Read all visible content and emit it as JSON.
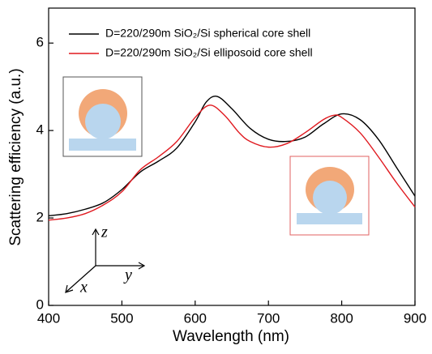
{
  "chart_data": {
    "type": "line",
    "xlabel": "Wavelength (nm)",
    "ylabel": "Scattering efficiency (a.u.)",
    "xlim": [
      400,
      900
    ],
    "xticks": [
      400,
      500,
      600,
      700,
      800,
      900
    ],
    "ylim": [
      0,
      6.8
    ],
    "yticks": [
      0,
      2,
      4,
      6
    ],
    "legend": "top-left",
    "series": [
      {
        "name": "D=220/290m SiO₂/Si spherical core shell",
        "color": "#000000",
        "x": [
          400,
          425,
          450,
          475,
          500,
          525,
          550,
          575,
          600,
          615,
          630,
          650,
          675,
          700,
          725,
          750,
          775,
          800,
          825,
          850,
          875,
          900
        ],
        "values": [
          2.05,
          2.1,
          2.2,
          2.35,
          2.65,
          3.05,
          3.3,
          3.6,
          4.2,
          4.65,
          4.78,
          4.5,
          4.05,
          3.8,
          3.75,
          3.85,
          4.15,
          4.38,
          4.25,
          3.8,
          3.15,
          2.5
        ]
      },
      {
        "name": "D=220/290m SiO₂/Si elliposoid core shell",
        "color": "#e0191f",
        "x": [
          400,
          425,
          450,
          475,
          500,
          525,
          550,
          575,
          600,
          620,
          640,
          660,
          675,
          700,
          725,
          750,
          775,
          790,
          800,
          825,
          850,
          875,
          900
        ],
        "values": [
          1.95,
          2.0,
          2.1,
          2.3,
          2.6,
          3.1,
          3.4,
          3.75,
          4.3,
          4.58,
          4.35,
          3.95,
          3.75,
          3.62,
          3.7,
          3.95,
          4.25,
          4.35,
          4.3,
          3.95,
          3.4,
          2.8,
          2.25
        ]
      }
    ],
    "inset_axes_labels": {
      "z": "z",
      "y": "y",
      "x": "x"
    }
  }
}
